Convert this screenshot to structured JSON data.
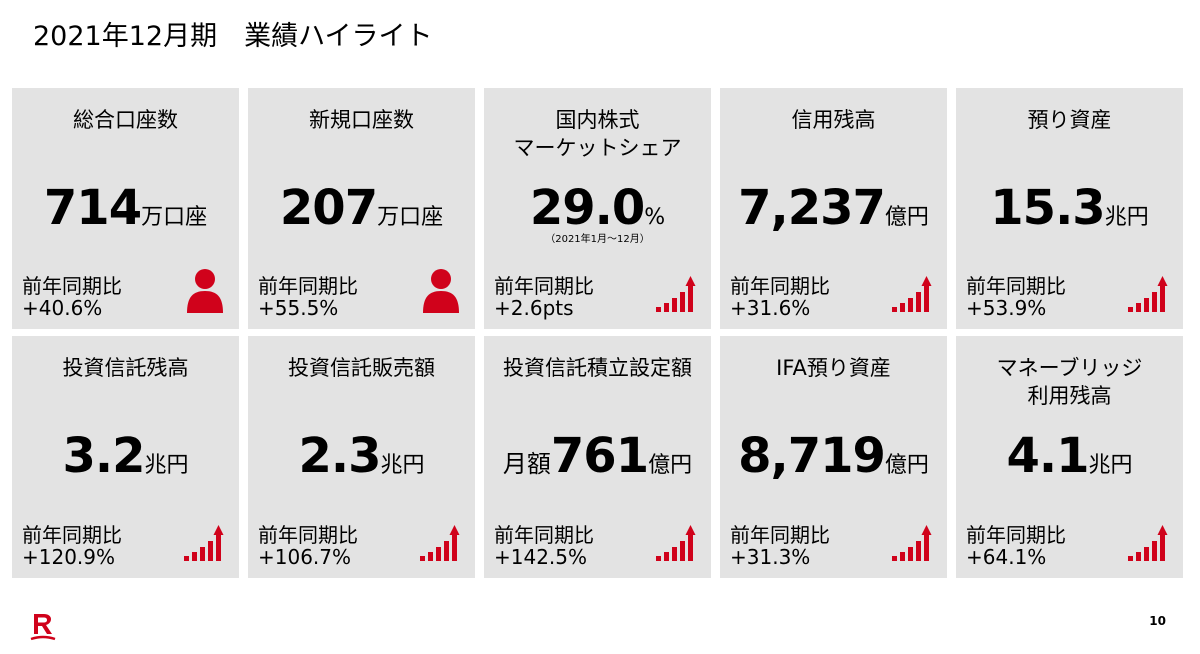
{
  "title": "2021年12月期　業績ハイライト",
  "page_number": "10",
  "cards": [
    {
      "label": "総合口座数",
      "prefix": "",
      "value": "714",
      "unit": "万口座",
      "note": "",
      "yoy_label": "前年同期比",
      "yoy_value": "+40.6%",
      "icon": "person-icon"
    },
    {
      "label": "新規口座数",
      "prefix": "",
      "value": "207",
      "unit": "万口座",
      "note": "",
      "yoy_label": "前年同期比",
      "yoy_value": "+55.5%",
      "icon": "person-icon"
    },
    {
      "label": "国内株式\nマーケットシェア",
      "prefix": "",
      "value": "29.0",
      "unit": "%",
      "note": "（2021年1月～12月）",
      "yoy_label": "前年同期比",
      "yoy_value": "+2.6pts",
      "icon": "growth-chart-icon"
    },
    {
      "label": "信用残高",
      "prefix": "",
      "value": "7,237",
      "unit": "億円",
      "note": "",
      "yoy_label": "前年同期比",
      "yoy_value": "+31.6%",
      "icon": "growth-chart-icon"
    },
    {
      "label": "預り資産",
      "prefix": "",
      "value": "15.3",
      "unit": "兆円",
      "note": "",
      "yoy_label": "前年同期比",
      "yoy_value": "+53.9%",
      "icon": "growth-chart-icon"
    },
    {
      "label": "投資信託残高",
      "prefix": "",
      "value": "3.2",
      "unit": "兆円",
      "note": "",
      "yoy_label": "前年同期比",
      "yoy_value": "+120.9%",
      "icon": "growth-chart-icon"
    },
    {
      "label": "投資信託販売額",
      "prefix": "",
      "value": "2.3",
      "unit": "兆円",
      "note": "",
      "yoy_label": "前年同期比",
      "yoy_value": "+106.7%",
      "icon": "growth-chart-icon"
    },
    {
      "label": "投資信託積立設定額",
      "prefix": "月額",
      "value": "761",
      "unit": "億円",
      "note": "",
      "yoy_label": "前年同期比",
      "yoy_value": "+142.5%",
      "icon": "growth-chart-icon"
    },
    {
      "label": "IFA預り資産",
      "prefix": "",
      "value": "8,719",
      "unit": "億円",
      "note": "",
      "yoy_label": "前年同期比",
      "yoy_value": "+31.3%",
      "icon": "growth-chart-icon"
    },
    {
      "label": "マネーブリッジ\n利用残高",
      "prefix": "",
      "value": "4.1",
      "unit": "兆円",
      "note": "",
      "yoy_label": "前年同期比",
      "yoy_value": "+64.1%",
      "icon": "growth-chart-icon"
    }
  ],
  "colors": {
    "accent": "#d0021b",
    "card_bg": "#e3e3e3"
  }
}
